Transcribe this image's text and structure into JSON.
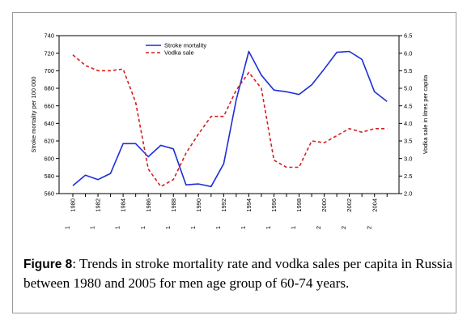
{
  "chart_data": {
    "type": "line",
    "title": "",
    "ylabel_left": "Stroke mortality per 100 000",
    "ylabel_right": "Vodka sale in litres per capita",
    "xlabel": "",
    "ylim_left": [
      560,
      740
    ],
    "ylim_right": [
      2.0,
      6.5
    ],
    "left_ticks": [
      "560",
      "580",
      "600",
      "620",
      "640",
      "660",
      "680",
      "700",
      "720",
      "740"
    ],
    "right_ticks": [
      "2.0",
      "2.5",
      "3.0",
      "3.5",
      "4.0",
      "4.5",
      "5.0",
      "5.5",
      "6.0",
      "6.5"
    ],
    "x": [
      1980,
      1981,
      1982,
      1983,
      1984,
      1985,
      1986,
      1987,
      1988,
      1989,
      1990,
      1991,
      1992,
      1993,
      1994,
      1995,
      1996,
      1997,
      1998,
      1999,
      2000,
      2001,
      2002,
      2003,
      2004,
      2005
    ],
    "x_tick_labels": [
      "1980",
      "1982",
      "1984",
      "1986",
      "1988",
      "1990",
      "1992",
      "1994",
      "1996",
      "1998",
      "2000",
      "2002",
      "2004"
    ],
    "x_second_row": [
      "1",
      "1",
      "1",
      "1",
      "1",
      "1",
      "1",
      "1",
      "1",
      "1",
      "2",
      "2",
      "2"
    ],
    "legend_position": "top-center",
    "grid": false,
    "series": [
      {
        "name": "Stroke mortality",
        "axis": "left",
        "color": "#1f2fd6",
        "dash": "solid",
        "values": [
          569,
          581,
          576,
          583,
          617,
          617,
          602,
          615,
          611,
          570,
          571,
          568,
          594,
          667,
          722,
          695,
          678,
          676,
          673,
          684,
          702,
          721,
          722,
          713,
          676,
          665
        ]
      },
      {
        "name": "Vodka sale",
        "axis": "right",
        "color": "#d42020",
        "dash": "dashed",
        "values": [
          5.95,
          5.65,
          5.5,
          5.5,
          5.55,
          4.6,
          2.7,
          2.2,
          2.4,
          3.15,
          3.7,
          4.2,
          4.2,
          4.95,
          5.45,
          5.0,
          2.95,
          2.75,
          2.75,
          3.5,
          3.45,
          3.65,
          3.85,
          3.75,
          3.85,
          3.85
        ]
      }
    ]
  },
  "caption": {
    "label": "Figure 8",
    "text": ": Trends in stroke mortality rate and vodka sales per capita in Russia between 1980 and 2005 for men age group of 60-74 years."
  }
}
